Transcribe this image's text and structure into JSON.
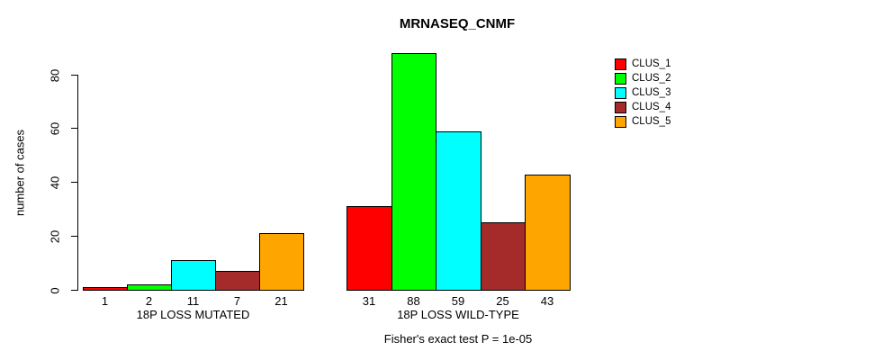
{
  "chart_data": {
    "type": "bar",
    "title": "MRNASEQ_CNMF",
    "ylabel": "number of cases",
    "ylim": [
      0,
      88
    ],
    "yticks": [
      0,
      20,
      40,
      60,
      80
    ],
    "grid": false,
    "legend_position": "top-right",
    "categories": [
      "18P LOSS MUTATED",
      "18P LOSS WILD-TYPE"
    ],
    "series": [
      {
        "name": "CLUS_1",
        "color": "#FF0000",
        "values": [
          1,
          31
        ]
      },
      {
        "name": "CLUS_2",
        "color": "#00FF00",
        "values": [
          2,
          88
        ]
      },
      {
        "name": "CLUS_3",
        "color": "#00FFFF",
        "values": [
          11,
          59
        ]
      },
      {
        "name": "CLUS_4",
        "color": "#A52A2A",
        "values": [
          7,
          25
        ]
      },
      {
        "name": "CLUS_5",
        "color": "#FFA500",
        "values": [
          21,
          43
        ]
      }
    ],
    "annotation": "Fisher's exact test P = 1e-05"
  }
}
